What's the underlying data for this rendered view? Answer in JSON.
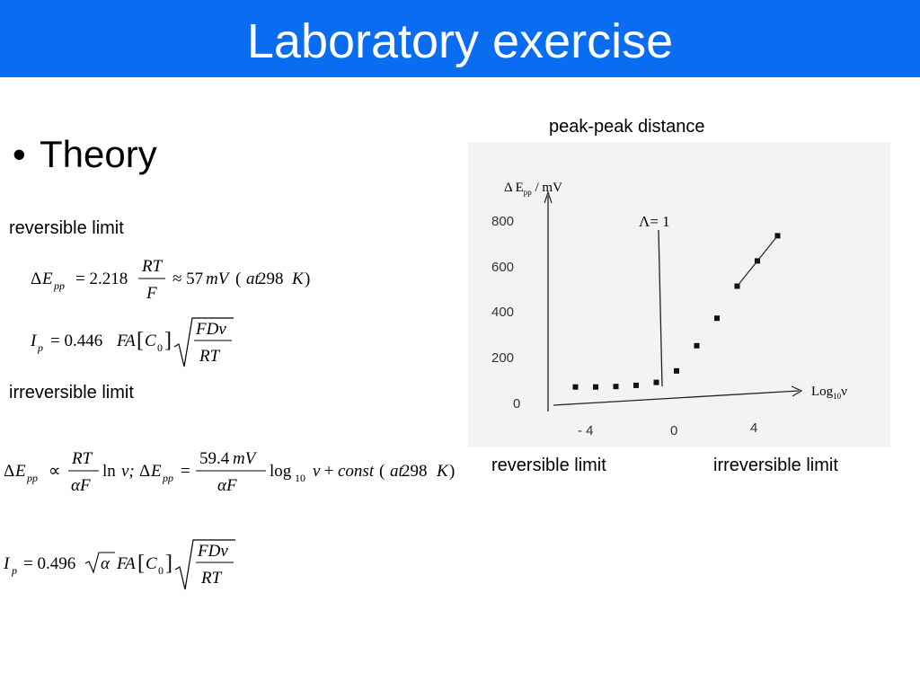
{
  "slide": {
    "title": "Laboratory exercise",
    "bullet": "Theory",
    "reversible_label": "reversible limit",
    "irreversible_label": "irreversible limit"
  },
  "figure": {
    "top_caption": "peak-peak distance",
    "bottom_left_caption": "reversible limit",
    "bottom_right_caption": "irreversible limit",
    "y_axis_label": "Δ E",
    "y_axis_sub": "pp",
    "y_axis_unit": " / mV",
    "x_axis_label": "Log",
    "x_axis_sub": "10",
    "x_axis_var": "ν",
    "lambda_label": "Λ= 1",
    "y_ticks": [
      "800",
      "600",
      "400",
      "200",
      "0"
    ],
    "x_ticks": [
      "- 4",
      "0",
      "4"
    ]
  },
  "chart_data": {
    "type": "scatter",
    "xlabel": "Log10 ν",
    "ylabel": "Δ Epp / mV",
    "ylim": [
      0,
      800
    ],
    "series": [
      {
        "x": [
          -5,
          -4,
          -3,
          -2,
          -1,
          0,
          1,
          2,
          3,
          4,
          5
        ],
        "y": [
          60,
          60,
          62,
          67,
          80,
          130,
          240,
          360,
          500,
          610,
          720
        ]
      }
    ]
  },
  "equations": {
    "eq1": {
      "lhs_delta": "Δ",
      "lhs_var": "E",
      "lhs_sub": "pp",
      "rhs1": "= 2.218",
      "num": "RT",
      "den": "F",
      "rhs2": "≈ 57",
      "unit": "mV",
      "tail1": " (",
      "tail2": "at",
      "tail3": " 298",
      "tail4": "K",
      "tail5": ")"
    },
    "eq2": {
      "lhs_var": "I",
      "lhs_sub": "p",
      "rhs1": "= 0.446",
      "fa": "FA",
      "c": "C",
      "c_sub": "0",
      "num": "FDv",
      "den": "RT"
    },
    "eq3": {
      "lhs_delta": "Δ",
      "lhs_var": "E",
      "lhs_sub": "pp",
      "prop": "∝",
      "num1": "RT",
      "den1": "αF",
      "ln": "ln",
      "v1": "v;",
      "delta2": "Δ",
      "var2": "E",
      "sub2": "pp",
      "eq": "=",
      "num2": "59.4",
      "num2b": "mV",
      "den2": "αF",
      "log": "log",
      "log_sub": "10",
      "v2": "v",
      "plus": " + ",
      "const": "const",
      "tail1": " (",
      "tail2": "at",
      "tail3": " 298",
      "tail4": "K",
      "tail5": ")"
    },
    "eq4": {
      "lhs_var": "I",
      "lhs_sub": "p",
      "rhs1": "= 0.496",
      "alpha": "α",
      "fa": "FA",
      "c": "C",
      "c_sub": "0",
      "num": "FDv",
      "den": "RT"
    }
  }
}
